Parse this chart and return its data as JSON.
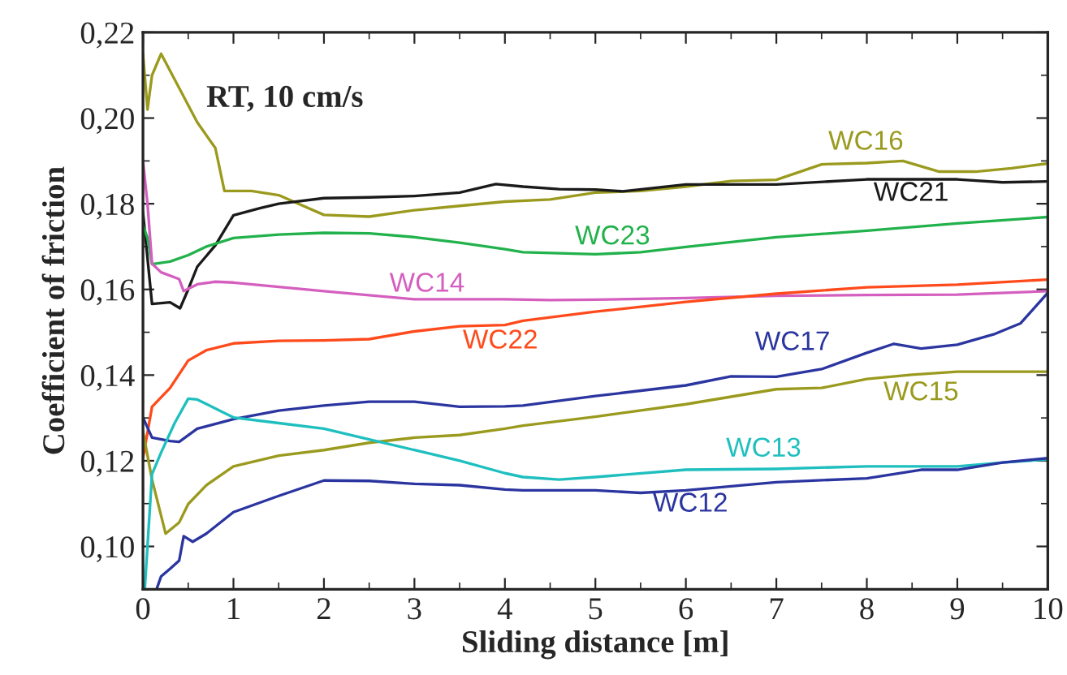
{
  "chart_data": {
    "type": "line",
    "xlabel": "Sliding distance [m]",
    "ylabel": "Coefficient of friction",
    "xlim": [
      0,
      10
    ],
    "xticks": [
      0,
      1,
      2,
      3,
      4,
      5,
      6,
      7,
      8,
      9,
      10
    ],
    "ylim": [
      0.09,
      0.22
    ],
    "yticks": [
      {
        "value": 0.1,
        "label": "0,10"
      },
      {
        "value": 0.12,
        "label": "0,12"
      },
      {
        "value": 0.14,
        "label": "0,14"
      },
      {
        "value": 0.16,
        "label": "0,16"
      },
      {
        "value": 0.18,
        "label": "0,18"
      },
      {
        "value": 0.2,
        "label": "0,20"
      },
      {
        "value": 0.22,
        "label": "0,22"
      }
    ],
    "grid": false,
    "legend": false,
    "marker": "none",
    "line_style": "solid",
    "annotations": [
      "RT, 10 cm/s",
      "WC16",
      "WC21",
      "WC23",
      "WC14",
      "WC22",
      "WC17",
      "WC15",
      "WC13",
      "WC12"
    ],
    "series": [
      {
        "color": "#9a9a1e",
        "x": [
          0,
          0.05,
          0.1,
          0.2,
          0.4,
          0.6,
          0.8,
          0.9,
          1.2,
          1.5,
          2.0,
          2.5,
          3.0,
          3.5,
          4.0,
          4.5,
          5.0,
          5.5,
          6.0,
          6.5,
          7.0,
          7.5,
          8.0,
          8.4,
          8.8,
          9.2,
          9.6,
          10
        ],
        "values": [
          0.215,
          0.202,
          0.21,
          0.215,
          0.207,
          0.199,
          0.193,
          0.183,
          0.183,
          0.182,
          0.1774,
          0.177,
          0.1785,
          0.1795,
          0.1805,
          0.181,
          0.1826,
          0.183,
          0.184,
          0.1853,
          0.1856,
          0.1892,
          0.1895,
          0.19,
          0.1875,
          0.1875,
          0.1883,
          0.1894
        ]
      },
      {
        "color": "#1a1a1a",
        "x": [
          0,
          0.1,
          0.3,
          0.41,
          0.5,
          0.6,
          0.8,
          1.0,
          1.3,
          1.5,
          2.0,
          2.5,
          3.0,
          3.5,
          3.9,
          4.2,
          4.6,
          5.0,
          5.3,
          6.0,
          6.5,
          7.0,
          8.0,
          9.0,
          9.5,
          10
        ],
        "values": [
          0.178,
          0.1566,
          0.157,
          0.1556,
          0.16,
          0.1653,
          0.1703,
          0.1773,
          0.179,
          0.18,
          0.1813,
          0.1815,
          0.1818,
          0.1826,
          0.1846,
          0.184,
          0.1834,
          0.1833,
          0.1829,
          0.1845,
          0.1845,
          0.1845,
          0.1857,
          0.1857,
          0.185,
          0.1852
        ]
      },
      {
        "color": "#22b24c",
        "x": [
          0,
          0.05,
          0.1,
          0.3,
          0.5,
          0.7,
          1.0,
          1.5,
          2.0,
          2.5,
          3.0,
          3.5,
          4.0,
          4.2,
          5.0,
          5.5,
          6.0,
          7.0,
          8.0,
          9.0,
          10
        ],
        "values": [
          0.175,
          0.172,
          0.1659,
          0.1665,
          0.168,
          0.17,
          0.172,
          0.1728,
          0.1732,
          0.1731,
          0.1722,
          0.1709,
          0.1694,
          0.1687,
          0.1682,
          0.1687,
          0.1699,
          0.1722,
          0.1737,
          0.1754,
          0.1769
        ]
      },
      {
        "color": "#d45fbf",
        "x": [
          0,
          0.05,
          0.1,
          0.2,
          0.4,
          0.45,
          0.6,
          0.8,
          1.0,
          2.0,
          3.0,
          4.0,
          4.5,
          5.0,
          6.0,
          7.0,
          8.0,
          9.0,
          10
        ],
        "values": [
          0.19,
          0.18,
          0.166,
          0.164,
          0.1624,
          0.1596,
          0.1612,
          0.1618,
          0.1616,
          0.1596,
          0.1577,
          0.1577,
          0.1575,
          0.1576,
          0.158,
          0.1585,
          0.1587,
          0.1588,
          0.1596
        ]
      },
      {
        "color": "#ff4a1c",
        "x": [
          0,
          0.1,
          0.3,
          0.5,
          0.7,
          1.0,
          1.5,
          2.0,
          2.5,
          3.0,
          3.5,
          4.0,
          4.2,
          5.0,
          6.0,
          7.0,
          8.0,
          9.0,
          10
        ],
        "values": [
          0.1206,
          0.1326,
          0.137,
          0.1434,
          0.1458,
          0.1474,
          0.148,
          0.1481,
          0.1484,
          0.1502,
          0.1514,
          0.1517,
          0.1527,
          0.1548,
          0.1571,
          0.159,
          0.1605,
          0.1611,
          0.1623
        ]
      },
      {
        "color": "#2b35a0",
        "x": [
          0,
          0.1,
          0.3,
          0.4,
          0.6,
          1.0,
          1.5,
          2.0,
          2.5,
          3.0,
          3.5,
          4.0,
          4.2,
          5.0,
          6.0,
          6.5,
          7.0,
          7.5,
          8.0,
          8.3,
          8.6,
          9.0,
          9.4,
          9.7,
          10
        ],
        "values": [
          0.1301,
          0.1254,
          0.1246,
          0.1244,
          0.1275,
          0.1297,
          0.1317,
          0.1329,
          0.1338,
          0.1338,
          0.1326,
          0.1327,
          0.1329,
          0.1351,
          0.1376,
          0.1397,
          0.1396,
          0.1414,
          0.1452,
          0.1473,
          0.1462,
          0.1471,
          0.1495,
          0.1521,
          0.1592
        ]
      },
      {
        "color": "#9a9a1e",
        "x": [
          0,
          0.1,
          0.25,
          0.4,
          0.5,
          0.7,
          1.0,
          1.5,
          2.0,
          2.5,
          3.0,
          3.5,
          4.0,
          4.2,
          5.0,
          6.0,
          7.0,
          7.5,
          8.0,
          8.5,
          9.0,
          9.5,
          10
        ],
        "values": [
          0.1269,
          0.1156,
          0.103,
          0.1056,
          0.1099,
          0.1143,
          0.1187,
          0.1212,
          0.1225,
          0.1242,
          0.1254,
          0.126,
          0.1275,
          0.1282,
          0.1303,
          0.1332,
          0.1367,
          0.137,
          0.1391,
          0.1401,
          0.1408,
          0.1408,
          0.1408
        ]
      },
      {
        "color": "#1fbfbf",
        "x": [
          0.02,
          0.1,
          0.2,
          0.35,
          0.5,
          0.6,
          1.0,
          1.5,
          2.0,
          2.5,
          3.0,
          3.5,
          4.0,
          4.2,
          4.6,
          5.0,
          6.0,
          7.0,
          8.0,
          9.0,
          9.5,
          10
        ],
        "values": [
          0.09,
          0.1169,
          0.1219,
          0.1288,
          0.1345,
          0.1343,
          0.1301,
          0.1288,
          0.1275,
          0.125,
          0.1225,
          0.12,
          0.1171,
          0.1162,
          0.1156,
          0.1162,
          0.1179,
          0.1181,
          0.1187,
          0.1187,
          0.1196,
          0.1203
        ]
      },
      {
        "color": "#2b35a0",
        "x": [
          0.15,
          0.2,
          0.3,
          0.4,
          0.45,
          0.55,
          0.7,
          1.0,
          1.5,
          2.0,
          2.5,
          3.0,
          3.5,
          4.0,
          4.2,
          5.0,
          5.5,
          6.0,
          7.0,
          8.0,
          8.6,
          9.0,
          9.5,
          10
        ],
        "values": [
          0.09,
          0.093,
          0.0948,
          0.0967,
          0.1024,
          0.1011,
          0.103,
          0.108,
          0.1118,
          0.1154,
          0.1153,
          0.1146,
          0.1143,
          0.1133,
          0.1131,
          0.1131,
          0.1125,
          0.1131,
          0.115,
          0.1159,
          0.1179,
          0.1179,
          0.1196,
          0.1206
        ]
      }
    ]
  }
}
